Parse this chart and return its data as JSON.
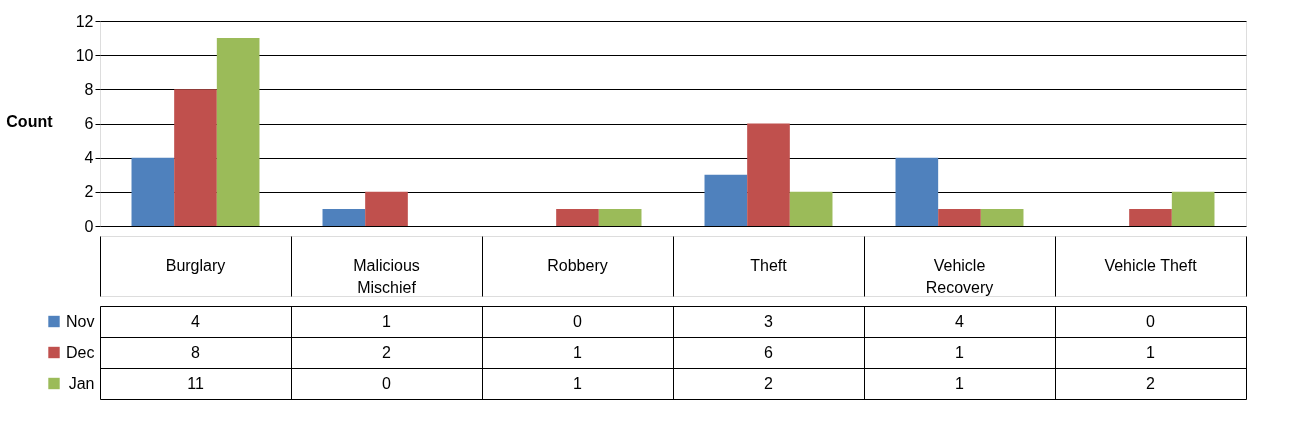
{
  "chart_data": {
    "type": "bar",
    "ylabel": "Count",
    "categories": [
      "Burglary",
      "Malicious Mischief",
      "Robbery",
      "Theft",
      "Vehicle Recovery",
      "Vehicle Theft"
    ],
    "series": [
      {
        "name": "Nov",
        "color": "#4f81bd",
        "values": [
          4,
          1,
          0,
          3,
          4,
          0
        ]
      },
      {
        "name": "Dec",
        "color": "#c0504d",
        "values": [
          8,
          2,
          1,
          6,
          1,
          1
        ]
      },
      {
        "name": "Jan",
        "color": "#9bbb59",
        "values": [
          11,
          0,
          1,
          2,
          1,
          2
        ]
      }
    ],
    "ylim": [
      0,
      12
    ],
    "yticks": [
      0,
      2,
      4,
      6,
      8,
      10,
      12
    ],
    "grid": "y",
    "legend": "bottom left",
    "data_labels": true
  }
}
